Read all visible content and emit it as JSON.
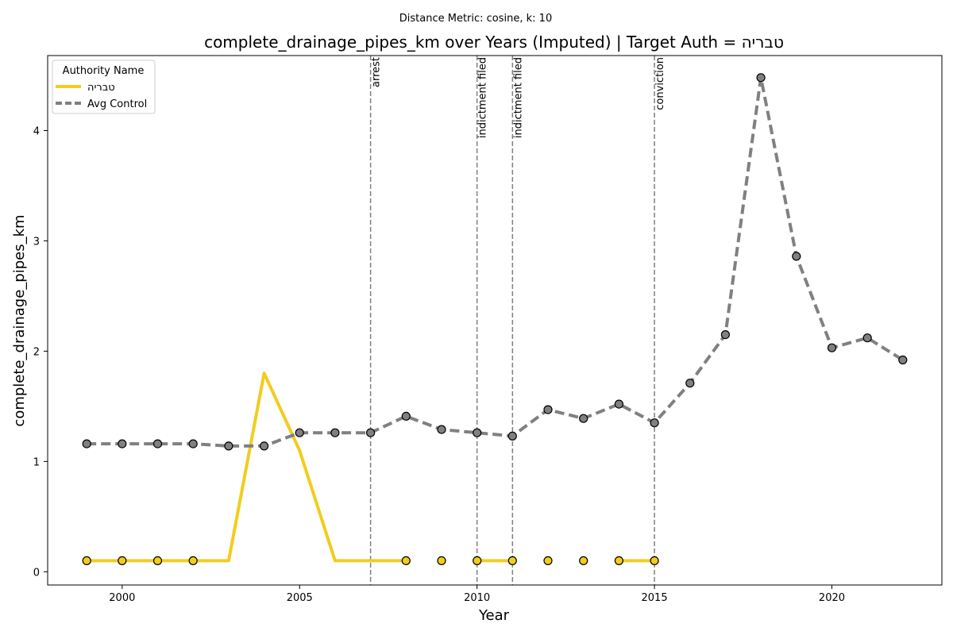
{
  "chart_data": {
    "type": "line",
    "suptitle": "Distance Metric: cosine, k: 10",
    "title": "complete_drainage_pipes_km over Years (Imputed) | Target Auth = טבריה",
    "xlabel": "Year",
    "ylabel": "complete_drainage_pipes_km",
    "xlim": [
      1997.9,
      2023.1
    ],
    "ylim": [
      -0.12,
      4.68
    ],
    "xticks": [
      2000,
      2005,
      2010,
      2015,
      2020
    ],
    "yticks": [
      0,
      1,
      2,
      3,
      4
    ],
    "grid": false,
    "legend": {
      "title": "Authority Name",
      "placement": "top-left"
    },
    "events": [
      {
        "x": 2007,
        "label": "arrest"
      },
      {
        "x": 2010,
        "label": "indictment filed"
      },
      {
        "x": 2011,
        "label": "indictment filed"
      },
      {
        "x": 2015,
        "label": "conviction"
      }
    ],
    "series": [
      {
        "name": "טבריה",
        "color": "#f2cc1f",
        "style": "solid",
        "x": [
          1999,
          2000,
          2001,
          2002,
          2003,
          2004,
          2005,
          2006,
          2007,
          2008,
          2009,
          2010,
          2011,
          2012,
          2013,
          2014,
          2015
        ],
        "y": [
          0.1,
          0.1,
          0.1,
          0.1,
          0.1,
          1.8,
          1.1,
          0.1,
          0.1,
          0.1,
          null,
          0.1,
          0.1,
          null,
          null,
          0.1,
          0.1
        ],
        "markers_x": [
          1999,
          2000,
          2001,
          2002,
          2008,
          2009,
          2010,
          2011,
          2012,
          2013,
          2014,
          2015
        ],
        "markers_y": [
          0.1,
          0.1,
          0.1,
          0.1,
          0.1,
          0.1,
          0.1,
          0.1,
          0.1,
          0.1,
          0.1,
          0.1
        ]
      },
      {
        "name": "Avg Control",
        "color": "#808080",
        "style": "dashed",
        "x": [
          1999,
          2000,
          2001,
          2002,
          2003,
          2004,
          2005,
          2006,
          2007,
          2008,
          2009,
          2010,
          2011,
          2012,
          2013,
          2014,
          2015,
          2016,
          2017,
          2018,
          2019,
          2020,
          2021,
          2022
        ],
        "y": [
          1.16,
          1.16,
          1.16,
          1.16,
          1.14,
          1.14,
          1.26,
          1.26,
          1.26,
          1.41,
          1.29,
          1.26,
          1.23,
          1.47,
          1.39,
          1.52,
          1.35,
          1.71,
          2.15,
          4.48,
          2.86,
          2.03,
          2.12,
          1.92
        ],
        "markers_x": [
          1999,
          2000,
          2001,
          2002,
          2003,
          2004,
          2005,
          2006,
          2007,
          2008,
          2009,
          2010,
          2011,
          2012,
          2013,
          2014,
          2015,
          2016,
          2017,
          2018,
          2019,
          2020,
          2021,
          2022
        ],
        "markers_y": [
          1.16,
          1.16,
          1.16,
          1.16,
          1.14,
          1.14,
          1.26,
          1.26,
          1.26,
          1.41,
          1.29,
          1.26,
          1.23,
          1.47,
          1.39,
          1.52,
          1.35,
          1.71,
          2.15,
          4.48,
          2.86,
          2.03,
          2.12,
          1.92
        ]
      }
    ]
  }
}
